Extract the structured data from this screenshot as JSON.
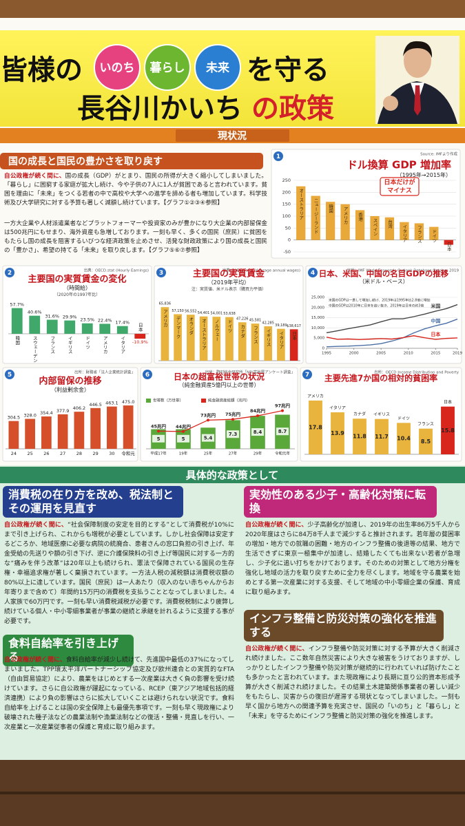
{
  "header": {
    "title1": "皆様の",
    "badges": [
      "いのち",
      "暮らし",
      "未来"
    ],
    "title2": "を守る",
    "title3": "長谷川かいち",
    "title4": "の政策"
  },
  "status_banner": "現状況",
  "section1": {
    "heading": "国の成長と国民の豊かさを取り戻す",
    "paragraphs": [
      {
        "lead": "自公政権が続く間に、",
        "body": "国の成長（GDP）がとまり、国民の所得が大きく縮小してしまいました。「暮らし」に困窮する家庭が拡大し続け、今や子供の7人に1人が貧困であると言われています。貧困を理由に「未来」をつくる若者の中で高校や大学への進学を諦める者も増加しています。科学技術及び大学研究に対する予算も著しく減額し続けています。【グラフ①②③④参照】"
      },
      {
        "lead": "",
        "body": "一方大企業や人材派遣業者などプラットフォーマーや投資家のみが豊かになり大企業の内部留保金は500兆円にもせまり、海外資産も急増しております。一刻も早く、多くの国民（庶民）に貧困をもたらし国の成長を阻害するいびつな経済政策を止めさせ、活発な財政政策により国の成長と国民の「豊かさ」、希望の持てる「未来」を取り戻します。【グラフ⑤⑥⑦参照】"
      }
    ]
  },
  "chart_data": [
    {
      "type": "bar",
      "number": 1,
      "title": "ドル換算 GDP 増加率",
      "subtitle": "（1995年→2015年）",
      "source": "Source: IMFより作成",
      "categories": [
        "オーストラリア",
        "ニュージーランド",
        "韓国",
        "アメリカ",
        "香港",
        "スペイン",
        "台湾",
        "イタリア",
        "フランス",
        "ドイツ",
        "日本"
      ],
      "values": [
        225,
        185,
        160,
        150,
        125,
        100,
        95,
        75,
        70,
        55,
        -20
      ],
      "colors": [
        "#e9a93a",
        "#e9a93a",
        "#e9a93a",
        "#e9a93a",
        "#e9a93a",
        "#e9a93a",
        "#e9a93a",
        "#e9a93a",
        "#e9a93a",
        "#e9a93a",
        "#d9261c"
      ],
      "ylim": [
        -50,
        250
      ],
      "yticks": [
        -50,
        0,
        50,
        100,
        150,
        200,
        250
      ],
      "grid": true,
      "annotation": [
        "日本だけが",
        "マイナス"
      ]
    },
    {
      "type": "bar",
      "number": 2,
      "title": "主要国の実質賃金の変化",
      "subtitle": "（時間給）",
      "note": "（2020年の1997年比）",
      "source": "出典：OECD.stat (Hourly Earnings)",
      "categories": [
        "韓国",
        "スウェーデン",
        "フランス",
        "イギリス",
        "ドイツ",
        "アメリカ",
        "イタリア",
        "日本"
      ],
      "values": [
        57.7,
        40.6,
        31.6,
        29.9,
        23.5,
        22.4,
        17.4,
        -10.9
      ],
      "value_labels": [
        "57.7%",
        "40.6%",
        "31.6%",
        "29.9%",
        "23.5%",
        "22.4%",
        "17.4%",
        "-10.9%"
      ],
      "colors": [
        "#3fa86a",
        "#3fa86a",
        "#3fa86a",
        "#3fa86a",
        "#3fa86a",
        "#3fa86a",
        "#3fa86a",
        "#d9261c"
      ]
    },
    {
      "type": "bar",
      "number": 3,
      "title": "主要国の実質賃金",
      "subtitle": "（2019年平均）",
      "note": "注：実質値、米ドル表示（購買力平価）",
      "source": "出典：OECD.stat (Average annual wages)",
      "categories": [
        "アメリカ",
        "デンマーク",
        "オランダ",
        "オーストラリア",
        "ノルウェー",
        "ドイツ",
        "カナダ",
        "フランス",
        "イギリス",
        "イタリア",
        "日本"
      ],
      "values": [
        65836,
        57150,
        56552,
        54401,
        54001,
        53638,
        47226,
        45581,
        42285,
        39189,
        38617
      ],
      "value_labels": [
        "65,836",
        "57,150",
        "56,552",
        "54,401",
        "54,001",
        "53,638",
        "47,226",
        "45,581",
        "42,285",
        "39,189",
        "$38,617"
      ],
      "colors": [
        "#e8b43e",
        "#e8b43e",
        "#e8b43e",
        "#e8b43e",
        "#e8b43e",
        "#e8b43e",
        "#e8b43e",
        "#e8b43e",
        "#e8b43e",
        "#e8b43e",
        "#d9261c"
      ]
    },
    {
      "type": "line",
      "number": 4,
      "title": "日本、米国、中国の名目GDPの推移",
      "subtitle": "（米ドル・ベース）",
      "source": "出所：IMF World Economic Outlook Database October 2019",
      "notes": [
        "米国のGDPは一貫して増加し続け、2019年は1995年比2.8倍に増加",
        "中国のGDPは2010年に日本を追い抜き、2019年は日本の約3倍"
      ],
      "x": [
        1995,
        1997,
        1999,
        2001,
        2003,
        2005,
        2007,
        2009,
        2011,
        2013,
        2015,
        2017,
        2019
      ],
      "series": [
        {
          "name": "米国",
          "color": "#444444",
          "values": [
            7640,
            8610,
            9630,
            10580,
            11460,
            13040,
            14450,
            14450,
            15540,
            16780,
            18220,
            19480,
            21430
          ]
        },
        {
          "name": "中国",
          "color": "#4a6fa5",
          "values": [
            730,
            960,
            1090,
            1340,
            1660,
            2290,
            3550,
            5100,
            7550,
            9570,
            11060,
            12310,
            14340
          ]
        },
        {
          "name": "日本",
          "color": "#d9261c",
          "values": [
            5450,
            4410,
            4560,
            4300,
            4520,
            4760,
            4520,
            5230,
            6160,
            5160,
            4390,
            4860,
            5080
          ]
        }
      ],
      "xlim": [
        1995,
        2019
      ],
      "xticks": [
        1995,
        2000,
        2005,
        2010,
        2015,
        2019
      ],
      "ylim": [
        0,
        25000
      ],
      "yticks": [
        0,
        {
          "value": 5000,
          "label": "5,000"
        },
        {
          "value": 10000,
          "label": "10,000"
        },
        {
          "value": 15000,
          "label": "15,000"
        },
        {
          "value": 20000,
          "label": "20,000"
        },
        {
          "value": 25000,
          "label": "25,000"
        }
      ],
      "grid": true
    },
    {
      "type": "bar",
      "number": 5,
      "title": "内部留保の推移",
      "subtitle": "（利益剰余金）",
      "source": "出所：財務省「法人企業統計調査」",
      "categories": [
        "24",
        "25",
        "26",
        "27",
        "28",
        "29",
        "30",
        "令和元"
      ],
      "values": [
        304.5,
        328.0,
        354.4,
        377.9,
        406.2,
        446.5,
        463.1,
        475.0
      ],
      "value_labels": [
        "304.5",
        "328.0",
        "354.4",
        "377.9",
        "406.2",
        "446.5",
        "463.1",
        "475.0"
      ],
      "colors": [
        "#d5502a",
        "#d5502a",
        "#d5502a",
        "#d5502a",
        "#d5502a",
        "#d5502a",
        "#d5502a",
        "#d5502a"
      ]
    },
    {
      "type": "combo",
      "number": 6,
      "title": "日本の超富裕世帯の状況",
      "subtitle": "（純金融資産5億円以上の世帯）",
      "source": "出所：野村総合研究所「NRI富裕層アンケート調査」",
      "categories": [
        "平成17年",
        "19年",
        "25年",
        "27年",
        "29年",
        "令和元年"
      ],
      "series": [
        {
          "name": "世帯数（万世帯）",
          "color": "#5aa83a",
          "values": [
            5.0,
            5.0,
            5.4,
            7.3,
            8.4,
            8.7
          ]
        },
        {
          "name": "純金融資産総額（兆円）",
          "color": "#d9261c",
          "values": [
            45,
            44,
            73,
            75,
            84,
            97
          ],
          "value_labels": [
            "45兆円",
            "44兆円",
            "73兆円",
            "75兆円",
            "84兆円",
            "97兆円"
          ]
        }
      ]
    },
    {
      "type": "bar",
      "number": 7,
      "title": "主要先進7か国の相対的貧困率",
      "source": "出所：OECD Income Distribution and Poverty",
      "categories": [
        "アメリカ",
        "イタリア",
        "カナダ",
        "イギリス",
        "ドイツ",
        "フランス",
        "日本"
      ],
      "values": [
        17.8,
        13.9,
        11.8,
        11.7,
        10.4,
        8.5,
        15.8
      ],
      "colors": [
        "#e8b43e",
        "#e8b43e",
        "#e8b43e",
        "#e8b43e",
        "#e8b43e",
        "#e8b43e",
        "#d9261c"
      ]
    }
  ],
  "policy_banner": "具体的な政策として",
  "policies": [
    {
      "heading": "消費税の在り方を改め、税法制とその運用を見直す",
      "lead": "自公政権が続く間に、",
      "body": "“社会保障制度の安定を目的とする”として消費税が10%にまで引き上げられ、これからも増税が必要としています。しかし社会保障は安定するどころか、地域医療に必要な病院の統廃合、患者さんの窓口負担の引き上げ、年金受給の先送りや額の引き下げ、逆に介護保険料の引き上げ等国民に対する一方的な“痛みを伴う改革”は20年以上も続けられ、憲法で保障されている国民の生存権・幸福追求権が著しく棄損されています。一方法人税の減税額は消費税収額の80%以上に達しています。国民（庶民）は一人あたり（収入のない赤ちゃんからお年寄りまで含めて）年間約15万円の消費税を支払うこととなってしまいました。4人家族で60万円です。一刻も早い消費税減税が必要です。消費税税制により疲弊し続けている個人・中小零細事業者が事業の継続と承継を計れるように支援する事が必要です。"
    },
    {
      "heading": "食料自給率を引き上げる",
      "lead": "自公政権が続く間に、",
      "body": "食料自給率が減少し続けて、先進国中最低の37%になってしまいました。TPP環太平洋パートナーシップ協定及び欧州連合との実質的なFTA（自由貿易協定）により、農業をはじめとする一次産業は大きく負の影響を受け続けています。さらに自公政権が躍起になっている、RCEP（東アジア地域包括的経済連携）により負の影響はさらに拡大していくことは避けられない状況です。食料自給率を上げることは国の安全保障上も最優先事項です。一刻も早く現政権により破壊された種子法などの農業法制や漁業法制などの復活・整備・見直しを行い、一次産業と一次産業従事者の保護と育成に取り組みます。"
    },
    {
      "heading": "実効性のある少子・高齢化対策に転換",
      "lead": "自公政権が続く間に、",
      "body": "少子高齢化が加速し、2019年の出生率86万5千人から2020年度はさらに84万8千人まで減少すると推計されます。若年層の貧困率の増加・地方での就職の困難・地方のインフラ整備の後退等の結果、地方で生活できずに東京一極集中が加速し、結婚したくても出来ない若者が急増し、少子化に追い打ちをかけております。そのための対策として地方分権を強化し地域の活力を取り戻すために全力を尽くします。地域を守る農業を始めとする第一次産業に対する支援、そして地域の中小零細企業の保護、育成に取り組みます。"
    },
    {
      "heading": "インフラ整備と防災対策の強化を推進する",
      "lead": "自公政権が続く間に、",
      "body": "インフラ整備や防災対策に対する予算が大きく削減され続けました。ここ数年自然災害により大きな被害をうけておりますが、しっかりとしたインフラ整備や防災対策が継続的に行われていれば防げたことも多かったと言われています。また現政権により長期に亘り公的資本形成予算が大きく削減され続けました。その結果土木建築関係事業者の著しい減少をもたらし、災害からの復旧が遅滞する現状となってしまいました。一刻も早く国から地方への関連予算を充実させ、国民の「いのち」と「暮らし」と「未来」を守るためにインフラ整備と防災対策の強化を推進します。"
    }
  ]
}
